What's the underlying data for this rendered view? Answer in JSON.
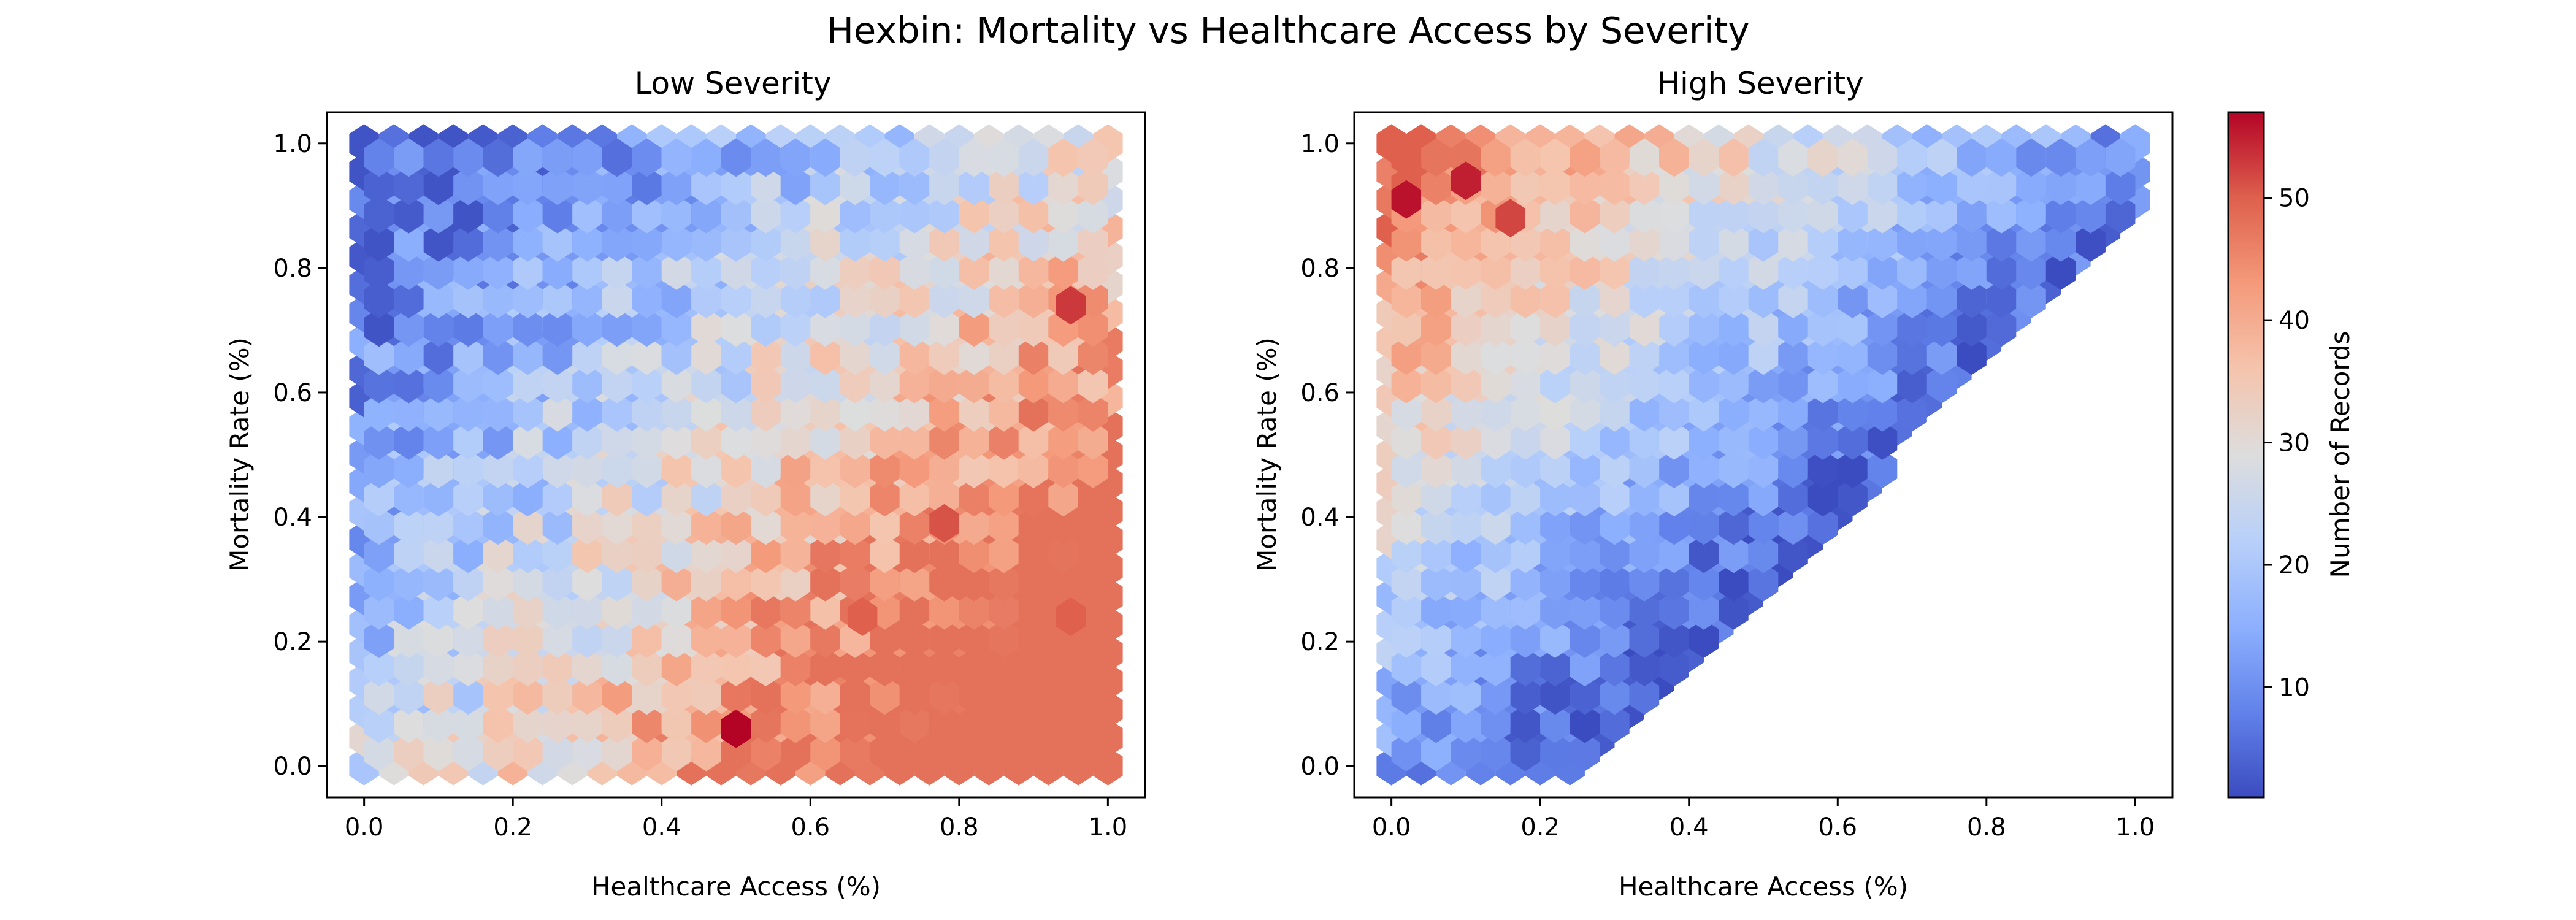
{
  "figure": {
    "title": "Hexbin: Mortality vs Healthcare Access by Severity"
  },
  "chart_data": [
    {
      "type": "heatmap",
      "subtype": "hexbin",
      "title": "Low Severity",
      "xlabel": "Healthcare Access (%)",
      "ylabel": "Mortality Rate (%)",
      "xlim": [
        -0.05,
        1.05
      ],
      "ylim": [
        -0.05,
        1.05
      ],
      "xticks": [
        "0.0",
        "0.2",
        "0.4",
        "0.6",
        "0.8",
        "1.0"
      ],
      "yticks": [
        "0.0",
        "0.2",
        "0.4",
        "0.6",
        "0.8",
        "1.0"
      ],
      "colormap": "coolwarm",
      "gridsize": [
        25,
        23
      ],
      "count_model": "Counts increase with healthcare access and decrease with mortality rate; lowest (~5) at top-left, highest (~45) along lower-right region, peak ~57 near (0.5, 0.06).",
      "notable_bins": [
        {
          "x": 0.5,
          "y": 0.06,
          "count": 57
        },
        {
          "x": 0.95,
          "y": 0.74,
          "count": 53
        },
        {
          "x": 0.78,
          "y": 0.39,
          "count": 51
        },
        {
          "x": 0.67,
          "y": 0.24,
          "count": 50
        },
        {
          "x": 0.95,
          "y": 0.24,
          "count": 50
        }
      ]
    },
    {
      "type": "heatmap",
      "subtype": "hexbin",
      "title": "High Severity",
      "xlabel": "Healthcare Access (%)",
      "ylabel": "Mortality Rate (%)",
      "xlim": [
        -0.05,
        1.05
      ],
      "ylim": [
        -0.05,
        1.05
      ],
      "xticks": [
        "0.0",
        "0.2",
        "0.4",
        "0.6",
        "0.8",
        "1.0"
      ],
      "yticks": [
        "0.0",
        "0.2",
        "0.4",
        "0.6",
        "0.8",
        "1.0"
      ],
      "colormap": "coolwarm",
      "gridsize": [
        25,
        23
      ],
      "count_model": "Counts highest (~40-50) at low access / high mortality (top-left), falling to ~1-5 toward the lower-right; bins below the diagonal mortality = 1.25*access - 0.35 are empty.",
      "notable_bins": [
        {
          "x": 0.02,
          "y": 0.91,
          "count": 56
        },
        {
          "x": 0.1,
          "y": 0.94,
          "count": 55
        },
        {
          "x": 0.16,
          "y": 0.88,
          "count": 52
        }
      ]
    }
  ],
  "colorbar": {
    "label": "Number of Records",
    "min": 1,
    "max": 57,
    "ticks": [
      "10",
      "20",
      "30",
      "40",
      "50"
    ],
    "tick_values": [
      10,
      20,
      30,
      40,
      50
    ]
  }
}
